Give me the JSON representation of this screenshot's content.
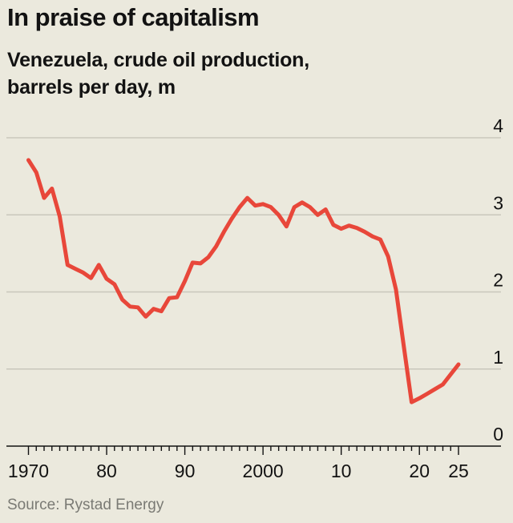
{
  "header": {
    "title": "In praise of capitalism",
    "subtitle_line1": "Venezuela, crude oil production,",
    "subtitle_line2": "barrels per day, m"
  },
  "footer": {
    "source": "Source: Rystad Energy"
  },
  "colors": {
    "background": "#ebe9dd",
    "line": "#e8473a",
    "gridline": "#c9c7bc",
    "axis": "#121212"
  },
  "chart_data": {
    "type": "line",
    "title": "In praise of capitalism",
    "subtitle": "Venezuela, crude oil production, barrels per day, m",
    "xlabel": "",
    "ylabel": "",
    "xlim": [
      1970,
      2025
    ],
    "ylim": [
      0,
      4
    ],
    "y_ticks": [
      0,
      1,
      2,
      3,
      4
    ],
    "y_tick_labels": [
      "0",
      "1",
      "2",
      "3",
      "4"
    ],
    "x_ticks": [
      1970,
      1980,
      1990,
      2000,
      2010,
      2020,
      2025
    ],
    "x_tick_labels": [
      "1970",
      "80",
      "90",
      "2000",
      "10",
      "20",
      "25"
    ],
    "grid": true,
    "y_axis_side": "right",
    "series": [
      {
        "color": "#e8473a",
        "x": [
          1970,
          1971,
          1972,
          1973,
          1974,
          1975,
          1976,
          1977,
          1978,
          1979,
          1980,
          1981,
          1982,
          1983,
          1984,
          1985,
          1986,
          1987,
          1988,
          1989,
          1990,
          1991,
          1992,
          1993,
          1994,
          1995,
          1996,
          1997,
          1998,
          1999,
          2000,
          2001,
          2002,
          2003,
          2004,
          2005,
          2006,
          2007,
          2008,
          2009,
          2010,
          2011,
          2012,
          2013,
          2014,
          2015,
          2016,
          2017,
          2018,
          2019,
          2020,
          2021,
          2022,
          2023,
          2024,
          2025
        ],
        "y": [
          3.71,
          3.55,
          3.22,
          3.34,
          2.98,
          2.35,
          2.3,
          2.25,
          2.18,
          2.35,
          2.17,
          2.1,
          1.9,
          1.81,
          1.8,
          1.68,
          1.78,
          1.75,
          1.92,
          1.93,
          2.14,
          2.38,
          2.37,
          2.45,
          2.59,
          2.78,
          2.95,
          3.1,
          3.22,
          3.12,
          3.14,
          3.1,
          3.0,
          2.85,
          3.1,
          3.16,
          3.1,
          3.0,
          3.07,
          2.87,
          2.82,
          2.86,
          2.83,
          2.78,
          2.72,
          2.68,
          2.46,
          2.03,
          1.3,
          0.57,
          0.62,
          0.68,
          0.74,
          0.8,
          0.93,
          1.06
        ]
      }
    ]
  }
}
